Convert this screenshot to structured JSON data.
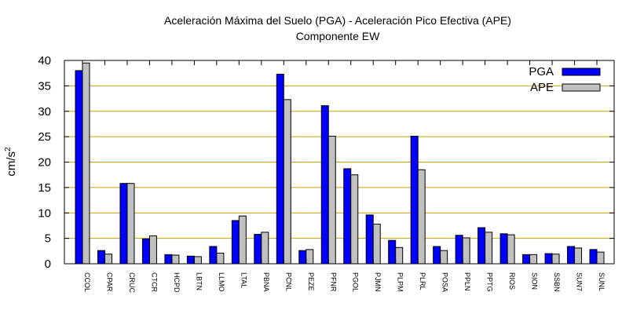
{
  "chart_data": {
    "type": "bar",
    "title": "Aceleración Máxima del Suelo (PGA) -  Aceleración Pico Efectiva (APE)",
    "subtitle": "Componente EW",
    "xlabel": "",
    "ylabel": "cm/s",
    "ylabel_superscript": "2",
    "ylim": [
      0,
      40
    ],
    "yticks": [
      0,
      5,
      10,
      15,
      20,
      25,
      30,
      35,
      40
    ],
    "grid": true,
    "legend_position": "top-right",
    "categories": [
      "CCOL",
      "CPAR",
      "CRUC",
      "CTCR",
      "HCPD",
      "LBTN",
      "LLMO",
      "LTAL",
      "PBNA",
      "PCNL",
      "PEZE",
      "PFNR",
      "PGOL",
      "PJMN",
      "PLPM",
      "PLRL",
      "POSA",
      "PPLN",
      "PPTG",
      "RIOS",
      "SION",
      "SSBN",
      "SUN7",
      "SUNL"
    ],
    "series": [
      {
        "name": "PGA",
        "color": "#0000ff",
        "values": [
          38,
          2.6,
          15.8,
          4.9,
          1.8,
          1.5,
          3.4,
          8.5,
          5.8,
          37.3,
          2.6,
          31.1,
          18.7,
          9.6,
          4.6,
          25.1,
          3.4,
          5.6,
          7.1,
          5.9,
          1.8,
          2,
          3.4,
          2.8
        ]
      },
      {
        "name": "APE",
        "color": "#c0c0c0",
        "values": [
          39.5,
          1.9,
          15.8,
          5.5,
          1.7,
          1.4,
          2.1,
          9.4,
          6.2,
          32.3,
          2.8,
          25.1,
          17.5,
          7.8,
          3.2,
          18.5,
          2.6,
          5.1,
          6.2,
          5.7,
          1.8,
          1.9,
          3.1,
          2.3
        ]
      }
    ],
    "colors": {
      "grid": "#c8a000",
      "axis": "#000000",
      "bar_outline": "#000000"
    }
  }
}
